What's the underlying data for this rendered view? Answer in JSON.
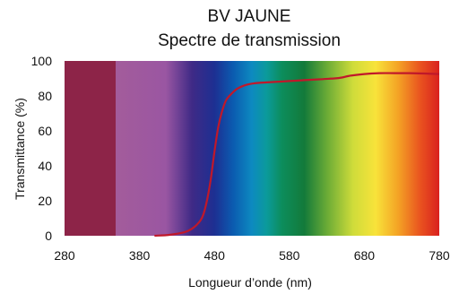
{
  "chart_data": {
    "type": "line",
    "title": "BV JAUNE",
    "subtitle": "Spectre de transmission",
    "xlabel": "Longueur d’onde (nm)",
    "ylabel": "Transmittance (%)",
    "xlim": [
      280,
      780
    ],
    "ylim": [
      0,
      100
    ],
    "x_ticks": [
      280,
      380,
      480,
      580,
      680,
      780
    ],
    "y_ticks": [
      0,
      20,
      40,
      60,
      80,
      100
    ],
    "grid": false,
    "background": "visible spectrum gradient (UV band at left)",
    "series": [
      {
        "color": "#c0182a",
        "x": [
          400,
          420,
          440,
          450,
          460,
          465,
          470,
          475,
          480,
          485,
          490,
          495,
          500,
          510,
          520,
          530,
          540,
          560,
          580,
          600,
          620,
          640,
          650,
          660,
          680,
          700,
          720,
          740,
          760,
          780
        ],
        "y": [
          0,
          0.5,
          2,
          4,
          8,
          12,
          20,
          32,
          48,
          62,
          71,
          77,
          80,
          84,
          86,
          87,
          87.5,
          88,
          88.5,
          89,
          89.5,
          90,
          90.5,
          91.5,
          92.5,
          93,
          93,
          93,
          92.8,
          92.5
        ]
      }
    ]
  }
}
